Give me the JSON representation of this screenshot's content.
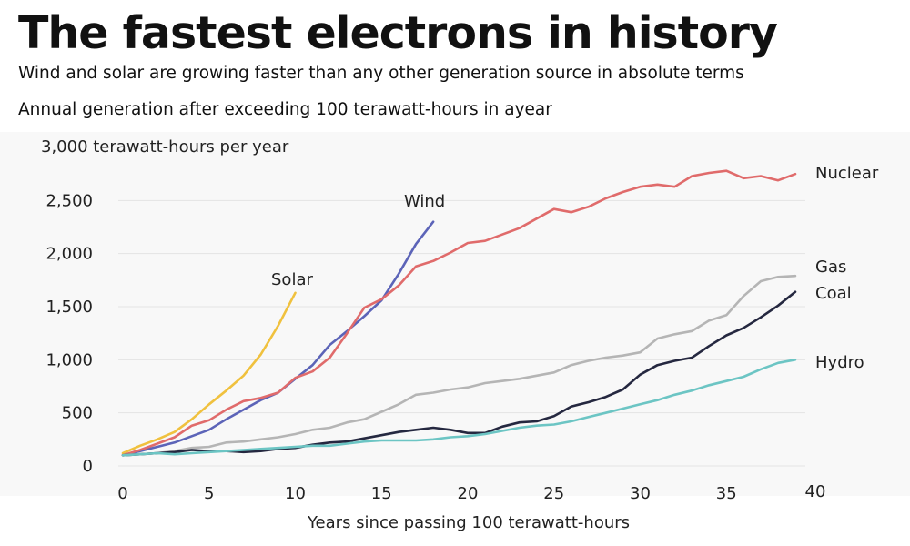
{
  "chart_data": {
    "type": "line",
    "title": "The fastest electrons in history",
    "subtitle": "Wind and solar are growing faster than any other generation source in absolute terms",
    "heading": "Annual generation after exceeding 100 terawatt-hours in ayear",
    "ylabel": "3,000 terawatt-hours per year",
    "xlabel": "Years since passing 100 terawatt-hours",
    "xlim": [
      0,
      40
    ],
    "ylim": [
      0,
      3000
    ],
    "xticks": [
      "0",
      "5",
      "10",
      "15",
      "20",
      "25",
      "30",
      "35",
      "40"
    ],
    "yticks": [
      "0",
      "500",
      "1,000",
      "1,500",
      "2,000",
      "2,500"
    ],
    "grid": "horizontal",
    "series": [
      {
        "name": "Solar",
        "color": "#f0c13e",
        "x": [
          0,
          1,
          2,
          3,
          4,
          5,
          6,
          7,
          8,
          9,
          10
        ],
        "y": [
          120,
          190,
          250,
          320,
          440,
          580,
          710,
          850,
          1050,
          1320,
          1630
        ]
      },
      {
        "name": "Wind",
        "color": "#5c64b8",
        "x": [
          0,
          1,
          2,
          3,
          4,
          5,
          6,
          7,
          8,
          9,
          10,
          11,
          12,
          13,
          14,
          15,
          16,
          17,
          18
        ],
        "y": [
          100,
          140,
          180,
          220,
          280,
          340,
          440,
          530,
          620,
          690,
          820,
          950,
          1140,
          1270,
          1410,
          1560,
          1810,
          2090,
          2300
        ]
      },
      {
        "name": "Nuclear",
        "color": "#e06b6b",
        "x": [
          0,
          1,
          2,
          3,
          4,
          5,
          6,
          7,
          8,
          9,
          10,
          11,
          12,
          13,
          14,
          15,
          16,
          17,
          18,
          19,
          20,
          21,
          22,
          23,
          24,
          25,
          26,
          27,
          28,
          29,
          30,
          31,
          32,
          33,
          34,
          35,
          36,
          37,
          38,
          39
        ],
        "y": [
          100,
          150,
          210,
          270,
          380,
          430,
          530,
          610,
          640,
          690,
          830,
          890,
          1020,
          1250,
          1490,
          1570,
          1700,
          1880,
          1930,
          2010,
          2100,
          2120,
          2180,
          2240,
          2330,
          2420,
          2390,
          2440,
          2520,
          2580,
          2630,
          2650,
          2630,
          2730,
          2760,
          2780,
          2710,
          2730,
          2690,
          2750
        ]
      },
      {
        "name": "Gas",
        "color": "#b5b5b5",
        "x": [
          0,
          1,
          2,
          3,
          4,
          5,
          6,
          7,
          8,
          9,
          10,
          11,
          12,
          13,
          14,
          15,
          16,
          17,
          18,
          19,
          20,
          21,
          22,
          23,
          24,
          25,
          26,
          27,
          28,
          29,
          30,
          31,
          32,
          33,
          34,
          35,
          36,
          37,
          38,
          39
        ],
        "y": [
          100,
          110,
          120,
          140,
          170,
          180,
          220,
          230,
          250,
          270,
          300,
          340,
          360,
          410,
          440,
          510,
          580,
          670,
          690,
          720,
          740,
          780,
          800,
          820,
          850,
          880,
          950,
          990,
          1020,
          1040,
          1070,
          1200,
          1240,
          1270,
          1370,
          1420,
          1600,
          1740,
          1780,
          1790
        ]
      },
      {
        "name": "Coal",
        "color": "#252840",
        "x": [
          0,
          1,
          2,
          3,
          4,
          5,
          6,
          7,
          8,
          9,
          10,
          11,
          12,
          13,
          14,
          15,
          16,
          17,
          18,
          19,
          20,
          21,
          22,
          23,
          24,
          25,
          26,
          27,
          28,
          29,
          30,
          31,
          32,
          33,
          34,
          35,
          36,
          37,
          38,
          39
        ],
        "y": [
          100,
          110,
          120,
          130,
          150,
          140,
          140,
          130,
          140,
          160,
          170,
          200,
          220,
          230,
          260,
          290,
          320,
          340,
          360,
          340,
          310,
          310,
          370,
          410,
          420,
          470,
          560,
          600,
          650,
          720,
          860,
          950,
          990,
          1020,
          1130,
          1230,
          1300,
          1400,
          1510,
          1640
        ]
      },
      {
        "name": "Hydro",
        "color": "#6cc5c4",
        "x": [
          0,
          1,
          2,
          3,
          4,
          5,
          6,
          7,
          8,
          9,
          10,
          11,
          12,
          13,
          14,
          15,
          16,
          17,
          18,
          19,
          20,
          21,
          22,
          23,
          24,
          25,
          26,
          27,
          28,
          29,
          30,
          31,
          32,
          33,
          34,
          35,
          36,
          37,
          38,
          39
        ],
        "y": [
          100,
          110,
          120,
          110,
          120,
          130,
          140,
          150,
          160,
          170,
          180,
          190,
          190,
          210,
          230,
          240,
          240,
          240,
          250,
          270,
          280,
          300,
          330,
          360,
          380,
          390,
          420,
          460,
          500,
          540,
          580,
          620,
          670,
          710,
          760,
          800,
          840,
          910,
          970,
          1000
        ]
      }
    ]
  }
}
